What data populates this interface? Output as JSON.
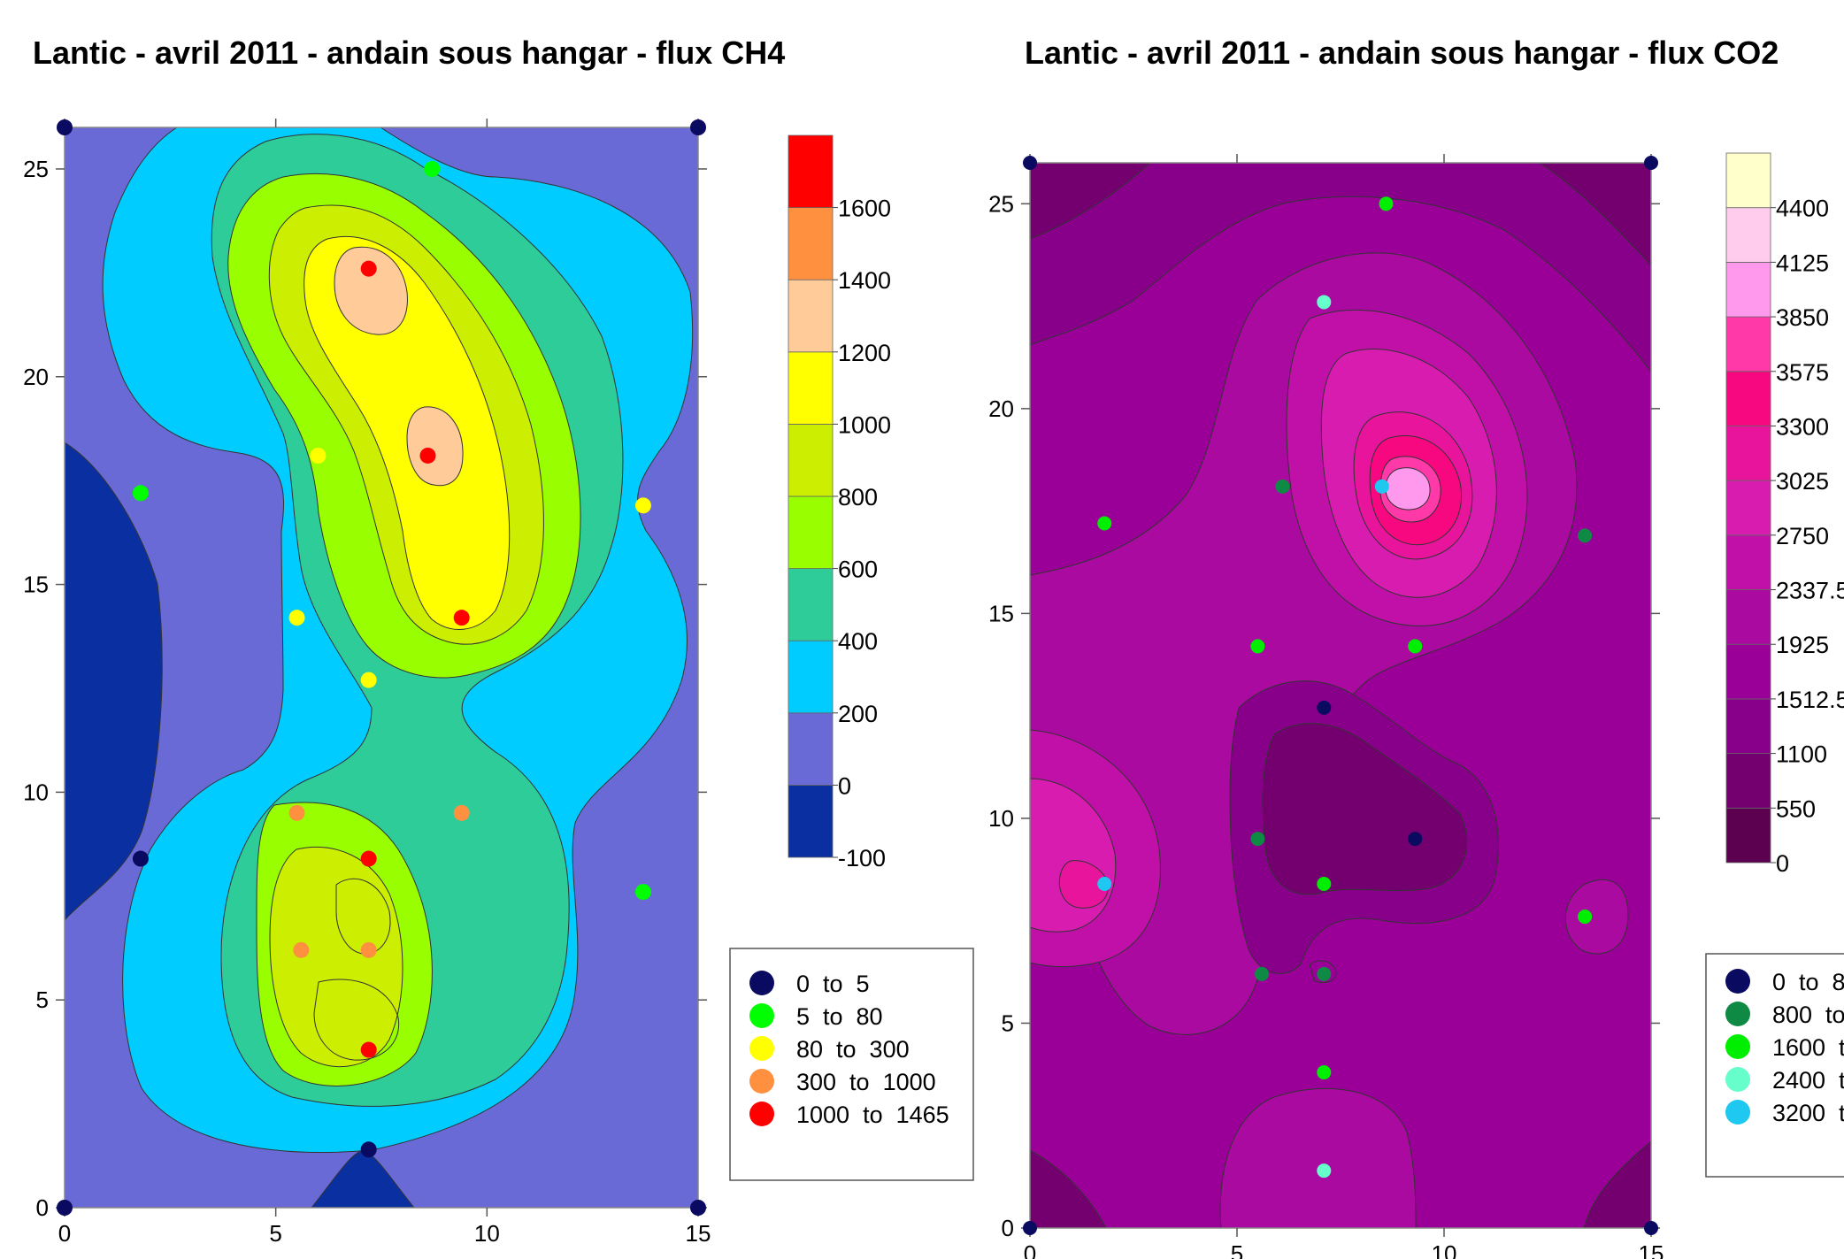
{
  "chart_data": [
    {
      "type": "contour",
      "title": "Lantic - avril 2011 - andain sous hangar - flux CH4",
      "xlabel": "",
      "ylabel": "",
      "xlim": [
        0,
        15
      ],
      "ylim": [
        0,
        26
      ],
      "x_ticks": [
        "0",
        "5",
        "10",
        "15"
      ],
      "y_ticks": [
        "0",
        "5",
        "10",
        "15",
        "20",
        "25"
      ],
      "grid": false,
      "colorbar": {
        "levels": [
          "-100",
          "0",
          "200",
          "400",
          "600",
          "800",
          "1000",
          "1200",
          "1400",
          "1600"
        ],
        "colors": [
          "#0a2fa0",
          "#6a6ad6",
          "#00ccff",
          "#2ecc99",
          "#99ff00",
          "#ccee00",
          "#ffff00",
          "#ffcc99",
          "#ff9040",
          "#ff0000"
        ]
      },
      "legend": {
        "placement": "bottom-right",
        "entries": [
          {
            "label": "0  to  5",
            "color": "#0a0a60"
          },
          {
            "label": "5  to  80",
            "color": "#00ff00"
          },
          {
            "label": "80  to  300",
            "color": "#ffff00"
          },
          {
            "label": "300  to  1000",
            "color": "#ff9040"
          },
          {
            "label": "1000  to  1465",
            "color": "#ff0000"
          }
        ]
      },
      "points": [
        {
          "x": 0,
          "y": 26,
          "class": 0
        },
        {
          "x": 15,
          "y": 26,
          "class": 0
        },
        {
          "x": 0,
          "y": 0,
          "class": 0
        },
        {
          "x": 15,
          "y": 0,
          "class": 0
        },
        {
          "x": 8.7,
          "y": 25,
          "class": 1
        },
        {
          "x": 1.8,
          "y": 17.2,
          "class": 1
        },
        {
          "x": 13.7,
          "y": 7.6,
          "class": 1
        },
        {
          "x": 6,
          "y": 18.1,
          "class": 2
        },
        {
          "x": 13.7,
          "y": 16.9,
          "class": 2
        },
        {
          "x": 5.5,
          "y": 14.2,
          "class": 2
        },
        {
          "x": 7.2,
          "y": 12.7,
          "class": 2
        },
        {
          "x": 7.2,
          "y": 22.6,
          "class": 4
        },
        {
          "x": 8.6,
          "y": 18.1,
          "class": 4
        },
        {
          "x": 9.4,
          "y": 14.2,
          "class": 4
        },
        {
          "x": 5.5,
          "y": 9.5,
          "class": 3
        },
        {
          "x": 9.4,
          "y": 9.5,
          "class": 3
        },
        {
          "x": 7.2,
          "y": 8.4,
          "class": 4
        },
        {
          "x": 5.6,
          "y": 6.2,
          "class": 3
        },
        {
          "x": 7.2,
          "y": 6.2,
          "class": 3
        },
        {
          "x": 7.2,
          "y": 3.8,
          "class": 4
        },
        {
          "x": 1.8,
          "y": 8.4,
          "class": 0
        },
        {
          "x": 7.2,
          "y": 1.4,
          "class": 0
        }
      ]
    },
    {
      "type": "contour",
      "title": "Lantic - avril 2011 - andain sous hangar - flux CO2",
      "xlabel": "",
      "ylabel": "",
      "xlim": [
        0,
        15
      ],
      "ylim": [
        0,
        26
      ],
      "x_ticks": [
        "0",
        "5",
        "10",
        "15"
      ],
      "y_ticks": [
        "0",
        "5",
        "10",
        "15",
        "20",
        "25"
      ],
      "grid": false,
      "colorbar": {
        "levels": [
          "0",
          "550",
          "1100",
          "1512.5",
          "1925",
          "2337.5",
          "2750",
          "3025",
          "3300",
          "3575",
          "3850",
          "4125",
          "4400"
        ],
        "colors": [
          "#5c0050",
          "#740070",
          "#88008a",
          "#9a0098",
          "#aa0aa0",
          "#c010a8",
          "#d81cb0",
          "#e8149c",
          "#f80880",
          "#ff3aa8",
          "#ff99ee",
          "#ffccee",
          "#ffffcc"
        ]
      },
      "legend": {
        "placement": "bottom-right",
        "entries": [
          {
            "label": "0  to  8",
            "color": "#0a0a60"
          },
          {
            "label": "800  to",
            "color": "#0f8a45"
          },
          {
            "label": "1600  t",
            "color": "#00ee00"
          },
          {
            "label": "2400  t",
            "color": "#66ffcc"
          },
          {
            "label": "3200  t",
            "color": "#1ec8f0"
          }
        ]
      },
      "points": [
        {
          "x": 0,
          "y": 26,
          "class": 0
        },
        {
          "x": 15,
          "y": 26,
          "class": 0
        },
        {
          "x": 0,
          "y": 0,
          "class": 0
        },
        {
          "x": 15,
          "y": 0,
          "class": 0
        },
        {
          "x": 8.6,
          "y": 25,
          "class": 2
        },
        {
          "x": 7.1,
          "y": 22.6,
          "class": 3
        },
        {
          "x": 1.8,
          "y": 17.2,
          "class": 2
        },
        {
          "x": 6.1,
          "y": 18.1,
          "class": 1
        },
        {
          "x": 8.5,
          "y": 18.1,
          "class": 4
        },
        {
          "x": 13.4,
          "y": 16.9,
          "class": 1
        },
        {
          "x": 5.5,
          "y": 14.2,
          "class": 2
        },
        {
          "x": 9.3,
          "y": 14.2,
          "class": 2
        },
        {
          "x": 7.1,
          "y": 12.7,
          "class": 0
        },
        {
          "x": 5.5,
          "y": 9.5,
          "class": 1
        },
        {
          "x": 9.3,
          "y": 9.5,
          "class": 0
        },
        {
          "x": 1.8,
          "y": 8.4,
          "class": 4
        },
        {
          "x": 7.1,
          "y": 8.4,
          "class": 2
        },
        {
          "x": 13.4,
          "y": 7.6,
          "class": 2
        },
        {
          "x": 5.6,
          "y": 6.2,
          "class": 1
        },
        {
          "x": 7.1,
          "y": 6.2,
          "class": 1
        },
        {
          "x": 7.1,
          "y": 3.8,
          "class": 2
        },
        {
          "x": 7.1,
          "y": 1.4,
          "class": 3
        }
      ]
    }
  ]
}
